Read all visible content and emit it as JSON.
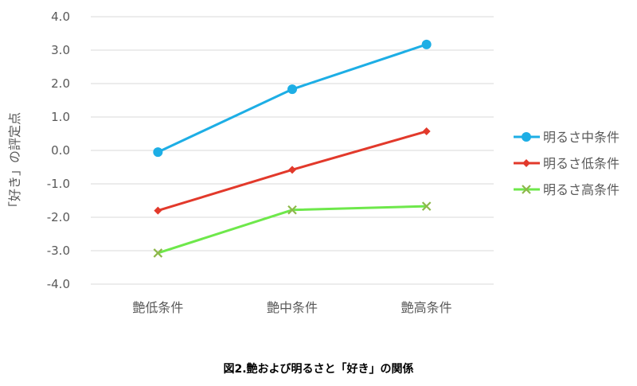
{
  "chart_data": {
    "type": "line",
    "title": "",
    "caption": "図2.艶および明るさと「好き」の関係",
    "xlabel": "",
    "ylabel": "「好き」の評定点",
    "categories": [
      "艶低条件",
      "艶中条件",
      "艶高条件"
    ],
    "ylim": [
      -4.0,
      4.0
    ],
    "yticks": [
      "4.0",
      "3.0",
      "2.0",
      "1.0",
      "0.0",
      "-1.0",
      "-2.0",
      "-3.0",
      "-4.0"
    ],
    "grid": true,
    "legend_position": "right",
    "series": [
      {
        "name": "明るさ中条件",
        "values": [
          -0.05,
          1.83,
          3.17
        ],
        "color": "#1DAEE5",
        "marker": "circle"
      },
      {
        "name": "明るさ低条件",
        "values": [
          -1.8,
          -0.58,
          0.57
        ],
        "color": "#E2392B",
        "marker": "diamond"
      },
      {
        "name": "明るさ高条件",
        "values": [
          -3.07,
          -1.78,
          -1.67
        ],
        "color": "#6EE84B",
        "marker": "x"
      }
    ]
  }
}
